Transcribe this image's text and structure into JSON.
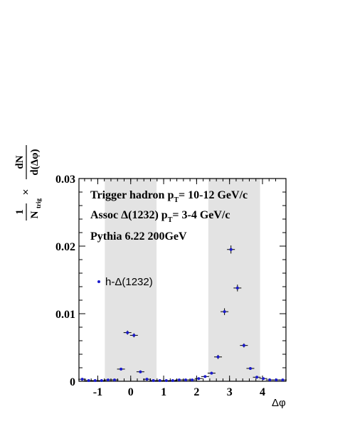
{
  "chart_data": {
    "type": "scatter",
    "title": "",
    "xlabel": "Δφ",
    "ylabel": {
      "prefix_num": "1",
      "prefix_den": "N",
      "prefix_den_sub": "trig",
      "times": "×",
      "num": "dN",
      "den": "d(Δφ)"
    },
    "xlim": [
      -1.5708,
      4.7124
    ],
    "ylim": [
      0,
      0.03
    ],
    "x_ticks": [
      -1,
      0,
      1,
      2,
      3,
      4
    ],
    "x_tick_labels": [
      "-1",
      "0",
      "1",
      "2",
      "3",
      "4"
    ],
    "y_ticks": [
      0,
      0.01,
      0.02,
      0.03
    ],
    "y_tick_labels": [
      "0",
      "0.01",
      "0.02",
      "0.03"
    ],
    "shaded_regions": [
      [
        -0.785,
        0.785
      ],
      [
        2.356,
        3.927
      ]
    ],
    "annotations": [
      {
        "text": "Trigger hadron p",
        "sub": "T",
        "rest": "= 10-12 GeV/c"
      },
      {
        "text": "Assoc Δ(1232) p",
        "sub": "T",
        "rest": "= 3-4 GeV/c"
      },
      {
        "text": "Pythia 6.22 200GeV",
        "sub": "",
        "rest": ""
      }
    ],
    "legend": {
      "position": "left",
      "label": "h-Δ(1232)",
      "color": "#1a1acc"
    },
    "grid": false,
    "series": [
      {
        "name": "h-Δ(1232)",
        "color": "#1a1acc",
        "x": [
          -1.471,
          -1.276,
          -1.08,
          -0.884,
          -0.687,
          -0.491,
          -0.295,
          -0.098,
          0.098,
          0.295,
          0.491,
          0.687,
          0.884,
          1.08,
          1.276,
          1.473,
          1.669,
          1.865,
          2.062,
          2.258,
          2.454,
          2.651,
          2.847,
          3.043,
          3.24,
          3.436,
          3.632,
          3.829,
          4.025,
          4.221,
          4.418,
          4.614
        ],
        "y": [
          0.0003,
          0.0001,
          0.0001,
          0.0001,
          0.0002,
          0.0002,
          0.0018,
          0.0072,
          0.0068,
          0.0014,
          0.0003,
          0.0001,
          0.0001,
          0.0001,
          0.0001,
          0.0002,
          0.0002,
          0.0002,
          0.0004,
          0.0007,
          0.0012,
          0.0036,
          0.0103,
          0.0195,
          0.0138,
          0.0053,
          0.0019,
          0.0006,
          0.0004,
          0.0002,
          0.0002,
          0.0002
        ],
        "yerr": [
          0.0001,
          0.0001,
          0.0001,
          0.0001,
          0.0001,
          0.0001,
          0.0002,
          0.0003,
          0.0003,
          0.0002,
          0.0001,
          0.0001,
          0.0001,
          0.0001,
          0.0001,
          0.0001,
          0.0001,
          0.0001,
          0.0001,
          0.0001,
          0.0002,
          0.0003,
          0.0005,
          0.0006,
          0.0005,
          0.0003,
          0.0002,
          0.0001,
          0.0001,
          0.0001,
          0.0001,
          0.0001
        ]
      }
    ]
  }
}
